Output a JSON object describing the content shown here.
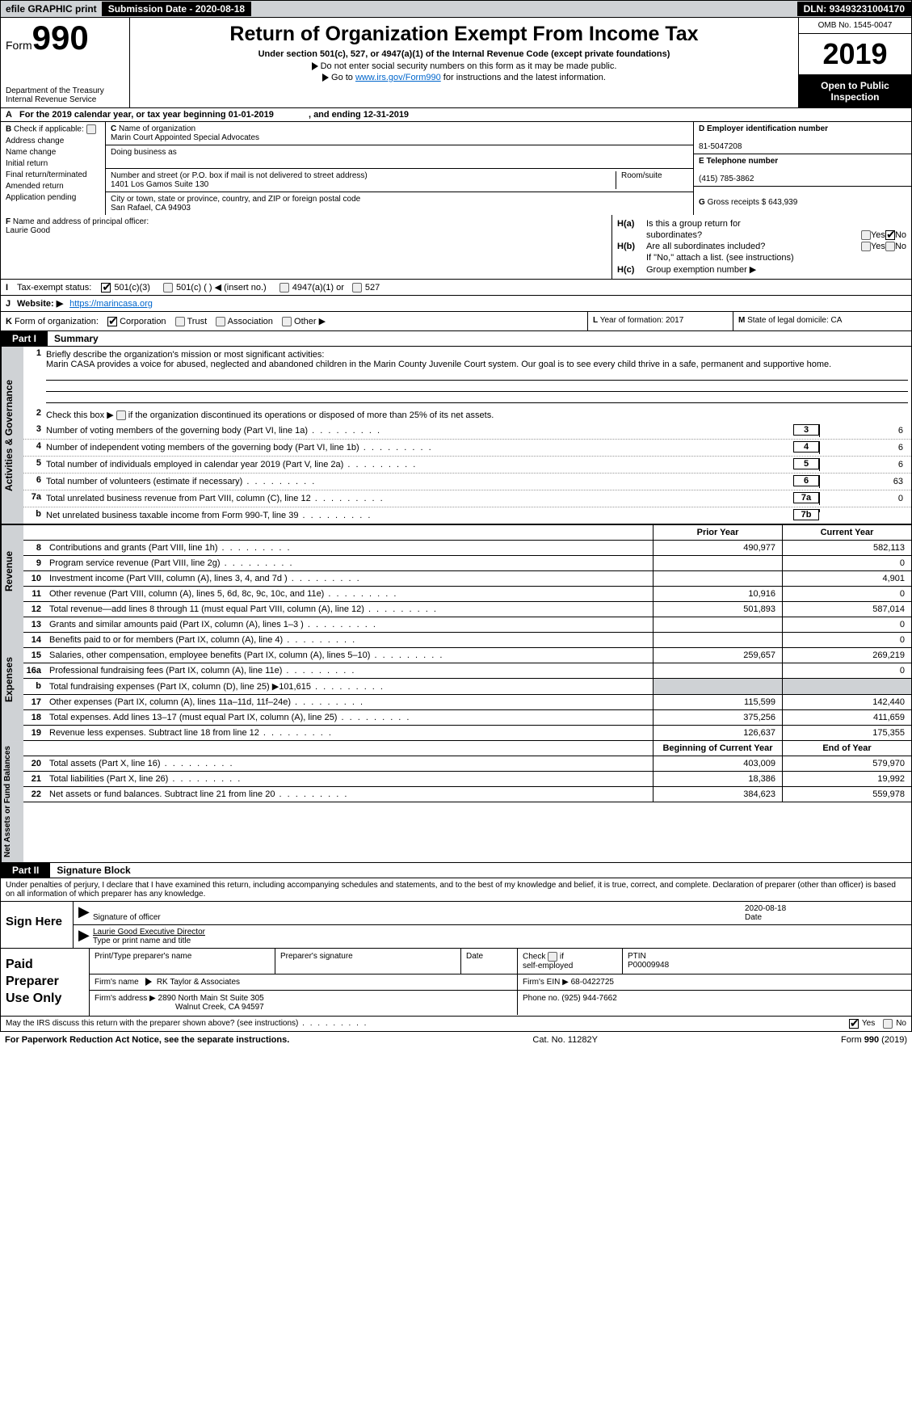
{
  "topbar": {
    "efile": "efile GRAPHIC print",
    "submission_label": "Submission Date - ",
    "submission_date": "2020-08-18",
    "dln_label": "DLN: ",
    "dln": "93493231004170"
  },
  "hdr": {
    "form_prefix": "Form",
    "form_num": "990",
    "dept": "Department of the Treasury\nInternal Revenue Service",
    "title": "Return of Organization Exempt From Income Tax",
    "sub": "Under section 501(c), 527, or 4947(a)(1) of the Internal Revenue Code (except private foundations)",
    "note1": "Do not enter social security numbers on this form as it may be made public.",
    "note2_pre": "Go to ",
    "note2_link": "www.irs.gov/Form990",
    "note2_post": " for instructions and the latest information.",
    "omb": "OMB No. 1545-0047",
    "year": "2019",
    "open": "Open to Public Inspection"
  },
  "rowA": {
    "label": "A",
    "text": "For the 2019 calendar year, or tax year beginning 01-01-2019",
    "mid": ", and ending 12-31-2019"
  },
  "B": {
    "label": "B",
    "check_if": "Check if applicable:",
    "items": [
      "Address change",
      "Name change",
      "Initial return",
      "Final return/terminated",
      "Amended return",
      "Application pending"
    ]
  },
  "C": {
    "c_label": "C",
    "name_label": "Name of organization",
    "name": "Marin Court Appointed Special Advocates",
    "dba_label": "Doing business as",
    "street_label": "Number and street (or P.O. box if mail is not delivered to street address)",
    "room_label": "Room/suite",
    "street": "1401 Los Gamos Suite 130",
    "city_label": "City or town, state or province, country, and ZIP or foreign postal code",
    "city": "San Rafael, CA  94903"
  },
  "DE": {
    "d_label": "D Employer identification number",
    "d_val": "81-5047208",
    "e_label": "E Telephone number",
    "e_val": "(415) 785-3862",
    "g_label": "G",
    "g_text": "Gross receipts $",
    "g_val": "643,939"
  },
  "F": {
    "label": "F",
    "text": "Name and address of principal officer:",
    "name": "Laurie Good"
  },
  "H": {
    "a_label": "H(a)",
    "a_text": "Is this a group return for",
    "a_text2": "subordinates?",
    "yes": "Yes",
    "no": "No",
    "b_label": "H(b)",
    "b_text": "Are all subordinates included?",
    "b_note": "If \"No,\" attach a list. (see instructions)",
    "c_label": "H(c)",
    "c_text": "Group exemption number ▶"
  },
  "I": {
    "label": "I",
    "text": "Tax-exempt status:",
    "o1": "501(c)(3)",
    "o2": "501(c) (  ) ◀ (insert no.)",
    "o3": "4947(a)(1) or",
    "o4": "527"
  },
  "J": {
    "label": "J",
    "text": "Website: ▶",
    "url": "https://marincasa.org"
  },
  "K": {
    "label": "K",
    "text": "Form of organization:",
    "o1": "Corporation",
    "o2": "Trust",
    "o3": "Association",
    "o4": "Other ▶"
  },
  "L": {
    "label": "L",
    "text": "Year of formation: 2017"
  },
  "M": {
    "label": "M",
    "text": "State of legal domicile: CA"
  },
  "partI": {
    "hdr": "Part I",
    "title": "Summary"
  },
  "summary": {
    "s1_label": "Activities & Governance",
    "l1n": "1",
    "l1": "Briefly describe the organization's mission or most significant activities:",
    "l1_text": "Marin CASA provides a voice for abused, neglected and abandoned children in the Marin County Juvenile Court system. Our goal is to see every child thrive in a safe, permanent and supportive home.",
    "l2n": "2",
    "l2": "Check this box ▶",
    "l2b": "if the organization discontinued its operations or disposed of more than 25% of its net assets.",
    "l3n": "3",
    "l3": "Number of voting members of the governing body (Part VI, line 1a)",
    "l3v": "6",
    "l4n": "4",
    "l4": "Number of independent voting members of the governing body (Part VI, line 1b)",
    "l4v": "6",
    "l5n": "5",
    "l5": "Total number of individuals employed in calendar year 2019 (Part V, line 2a)",
    "l5v": "6",
    "l6n": "6",
    "l6": "Total number of volunteers (estimate if necessary)",
    "l6v": "63",
    "l7an": "7a",
    "l7a": "Total unrelated business revenue from Part VIII, column (C), line 12",
    "l7av": "0",
    "l7bn": "b",
    "l7b": "Net unrelated business taxable income from Form 990-T, line 39",
    "l7bv": ""
  },
  "revenue": {
    "label": "Revenue",
    "hdr_prior": "Prior Year",
    "hdr_curr": "Current Year",
    "rows": [
      {
        "n": "8",
        "t": "Contributions and grants (Part VIII, line 1h)",
        "pv": "490,977",
        "cv": "582,113"
      },
      {
        "n": "9",
        "t": "Program service revenue (Part VIII, line 2g)",
        "pv": "",
        "cv": "0"
      },
      {
        "n": "10",
        "t": "Investment income (Part VIII, column (A), lines 3, 4, and 7d )",
        "pv": "",
        "cv": "4,901"
      },
      {
        "n": "11",
        "t": "Other revenue (Part VIII, column (A), lines 5, 6d, 8c, 9c, 10c, and 11e)",
        "pv": "10,916",
        "cv": "0"
      },
      {
        "n": "12",
        "t": "Total revenue—add lines 8 through 11 (must equal Part VIII, column (A), line 12)",
        "pv": "501,893",
        "cv": "587,014"
      }
    ]
  },
  "expenses": {
    "label": "Expenses",
    "rows": [
      {
        "n": "13",
        "t": "Grants and similar amounts paid (Part IX, column (A), lines 1–3 )",
        "pv": "",
        "cv": "0"
      },
      {
        "n": "14",
        "t": "Benefits paid to or for members (Part IX, column (A), line 4)",
        "pv": "",
        "cv": "0"
      },
      {
        "n": "15",
        "t": "Salaries, other compensation, employee benefits (Part IX, column (A), lines 5–10)",
        "pv": "259,657",
        "cv": "269,219"
      },
      {
        "n": "16a",
        "t": "Professional fundraising fees (Part IX, column (A), line 11e)",
        "pv": "",
        "cv": "0"
      },
      {
        "n": "b",
        "t": "Total fundraising expenses (Part IX, column (D), line 25) ▶101,615",
        "pv": "__grey__",
        "cv": "__grey__"
      },
      {
        "n": "17",
        "t": "Other expenses (Part IX, column (A), lines 11a–11d, 11f–24e)",
        "pv": "115,599",
        "cv": "142,440"
      },
      {
        "n": "18",
        "t": "Total expenses. Add lines 13–17 (must equal Part IX, column (A), line 25)",
        "pv": "375,256",
        "cv": "411,659"
      },
      {
        "n": "19",
        "t": "Revenue less expenses. Subtract line 18 from line 12",
        "pv": "126,637",
        "cv": "175,355"
      }
    ]
  },
  "netassets": {
    "label": "Net Assets or Fund Balances",
    "hdr_prior": "Beginning of Current Year",
    "hdr_curr": "End of Year",
    "rows": [
      {
        "n": "20",
        "t": "Total assets (Part X, line 16)",
        "pv": "403,009",
        "cv": "579,970"
      },
      {
        "n": "21",
        "t": "Total liabilities (Part X, line 26)",
        "pv": "18,386",
        "cv": "19,992"
      },
      {
        "n": "22",
        "t": "Net assets or fund balances. Subtract line 21 from line 20",
        "pv": "384,623",
        "cv": "559,978"
      }
    ]
  },
  "partII": {
    "hdr": "Part II",
    "title": "Signature Block"
  },
  "sig": {
    "penalties": "Under penalties of perjury, I declare that I have examined this return, including accompanying schedules and statements, and to the best of my knowledge and belief, it is true, correct, and complete. Declaration of preparer (other than officer) is based on all information of which preparer has any knowledge.",
    "here": "Sign Here",
    "sig_officer": "Signature of officer",
    "date_l": "Date",
    "date_v": "2020-08-18",
    "name": "Laurie Good  Executive Director",
    "name_l": "Type or print name and title"
  },
  "paid": {
    "label": "Paid Preparer Use Only",
    "h_name": "Print/Type preparer's name",
    "h_sig": "Preparer's signature",
    "h_date": "Date",
    "check_l": "Check",
    "if_l": "if",
    "self_l": "self-employed",
    "ptin_l": "PTIN",
    "ptin_v": "P00009948",
    "firm_l": "Firm's name",
    "firm_v": "RK Taylor & Associates",
    "ein_l": "Firm's EIN ▶",
    "ein_v": "68-0422725",
    "addr_l": "Firm's address ▶",
    "addr_v1": "2890 North Main St Suite 305",
    "addr_v2": "Walnut Creek, CA  94597",
    "phone_l": "Phone no.",
    "phone_v": "(925) 944-7662"
  },
  "discuss": {
    "text": "May the IRS discuss this return with the preparer shown above? (see instructions)",
    "yes": "Yes",
    "no": "No"
  },
  "footer": {
    "left": "For Paperwork Reduction Act Notice, see the separate instructions.",
    "mid": "Cat. No. 11282Y",
    "right": "Form 990 (2019)"
  }
}
